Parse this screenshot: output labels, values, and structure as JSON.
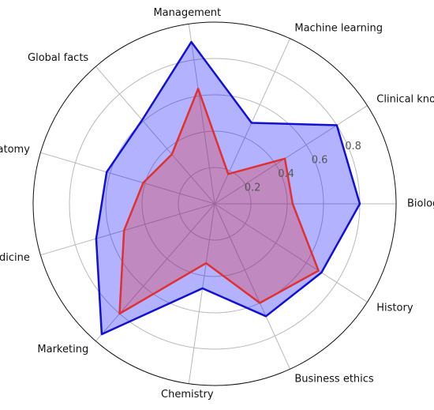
{
  "chart_data": {
    "type": "radar",
    "categories": [
      "Biology",
      "Clinical knowledge",
      "Machine learning",
      "Management",
      "Global facts",
      "Anatomy",
      "Medicine",
      "Marketing",
      "Chemistry",
      "Business ethics",
      "History"
    ],
    "series": [
      {
        "color": "#1010d8",
        "fill": "#0000ff",
        "values": [
          0.8,
          0.8,
          0.49,
          0.9,
          0.61,
          0.62,
          0.68,
          0.95,
          0.47,
          0.68,
          0.7
        ]
      },
      {
        "color": "#e03030",
        "fill": "#e03030",
        "values": [
          0.43,
          0.46,
          0.18,
          0.64,
          0.36,
          0.41,
          0.52,
          0.8,
          0.33,
          0.6,
          0.68
        ]
      }
    ],
    "ylim": [
      0,
      1
    ],
    "yticks": [
      0.2,
      0.4,
      0.6,
      0.8
    ],
    "grid": true
  }
}
